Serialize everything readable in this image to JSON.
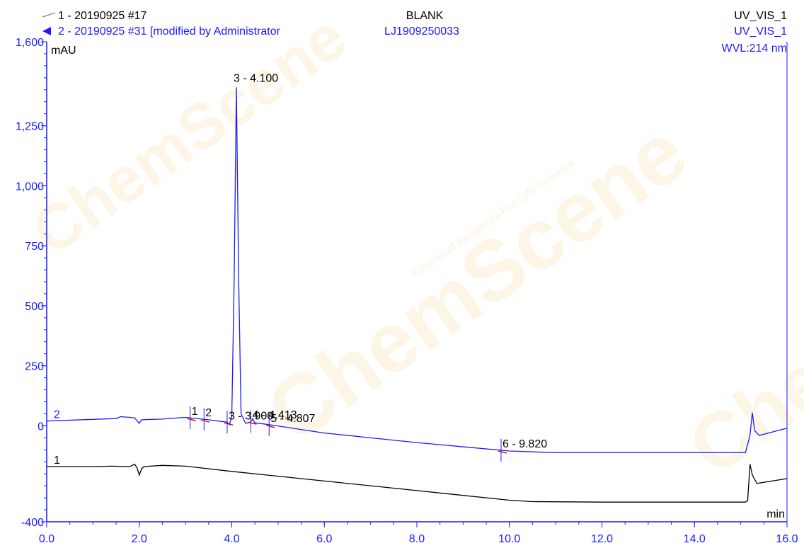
{
  "header": {
    "trace1_label": "1 - 20190925 #17",
    "trace2_label": "2 - 20190925 #31 [modified by Administrator",
    "center_top": "BLANK",
    "center_bottom": "LJ1909250033",
    "right_top": "UV_VIS_1",
    "right_middle": "UV_VIS_1",
    "right_bottom": "WVL:214 nm"
  },
  "watermark": {
    "text": "ChemScene",
    "subtext": "Chemical Reagents For Life Science"
  },
  "colors": {
    "trace1": "#000000",
    "trace2": "#1a1aff",
    "baseline_marker": "#d40000"
  },
  "chart_data": {
    "type": "line",
    "xlabel": "min",
    "ylabel": "mAU",
    "xlim": [
      0,
      16
    ],
    "ylim": [
      -400,
      1600
    ],
    "x_ticks": [
      "0.0",
      "2.0",
      "4.0",
      "6.0",
      "8.0",
      "10.0",
      "12.0",
      "14.0",
      "16.0"
    ],
    "y_ticks": [
      {
        "value": -400,
        "label": "-400"
      },
      {
        "value": 0,
        "label": "0"
      },
      {
        "value": 250,
        "label": "250"
      },
      {
        "value": 500,
        "label": "500"
      },
      {
        "value": 750,
        "label": "750"
      },
      {
        "value": 1000,
        "label": "1,000"
      },
      {
        "value": 1250,
        "label": "1,250"
      },
      {
        "value": 1600,
        "label": "1,600"
      }
    ],
    "grid": false,
    "series": [
      {
        "name": "1",
        "points": [
          [
            0,
            -170
          ],
          [
            1.0,
            -170
          ],
          [
            1.4,
            -168
          ],
          [
            1.8,
            -170
          ],
          [
            1.9,
            -160
          ],
          [
            1.95,
            -175
          ],
          [
            2.0,
            -205
          ],
          [
            2.05,
            -180
          ],
          [
            2.1,
            -170
          ],
          [
            2.5,
            -165
          ],
          [
            3.0,
            -168
          ],
          [
            4.0,
            -190
          ],
          [
            6.0,
            -230
          ],
          [
            8.0,
            -270
          ],
          [
            10.0,
            -310
          ],
          [
            10.5,
            -316
          ],
          [
            12.0,
            -318
          ],
          [
            15.1,
            -318
          ],
          [
            15.15,
            -312
          ],
          [
            15.2,
            -160
          ],
          [
            15.25,
            -205
          ],
          [
            15.35,
            -240
          ],
          [
            16.0,
            -220
          ]
        ]
      },
      {
        "name": "2",
        "points": [
          [
            0,
            20
          ],
          [
            1.5,
            30
          ],
          [
            1.6,
            38
          ],
          [
            1.8,
            35
          ],
          [
            1.9,
            33
          ],
          [
            2.0,
            10
          ],
          [
            2.05,
            25
          ],
          [
            2.5,
            28
          ],
          [
            3.0,
            35
          ],
          [
            3.5,
            25
          ],
          [
            3.9,
            15
          ],
          [
            3.95,
            5
          ],
          [
            4.0,
            40
          ],
          [
            4.05,
            600
          ],
          [
            4.1,
            1410
          ],
          [
            4.15,
            600
          ],
          [
            4.2,
            50
          ],
          [
            4.3,
            10
          ],
          [
            4.4,
            15
          ],
          [
            4.45,
            28
          ],
          [
            4.5,
            12
          ],
          [
            4.8,
            5
          ],
          [
            6.0,
            -30
          ],
          [
            8.0,
            -70
          ],
          [
            10.0,
            -105
          ],
          [
            11.0,
            -112
          ],
          [
            15.1,
            -112
          ],
          [
            15.2,
            -40
          ],
          [
            15.25,
            55
          ],
          [
            15.3,
            -20
          ],
          [
            15.4,
            -40
          ],
          [
            16.0,
            -10
          ]
        ]
      }
    ],
    "peaks": [
      {
        "label": "1",
        "x": 3.1
      },
      {
        "label": "2",
        "x": 3.4
      },
      {
        "label": "3 - 3.900",
        "x": 3.9
      },
      {
        "label": "3 - 4.100",
        "x": 4.1
      },
      {
        "label": "4 - 4.413",
        "x": 4.413
      },
      {
        "label": "5 - 4.807",
        "x": 4.807
      },
      {
        "label": "6 - 9.820",
        "x": 9.82
      }
    ]
  }
}
